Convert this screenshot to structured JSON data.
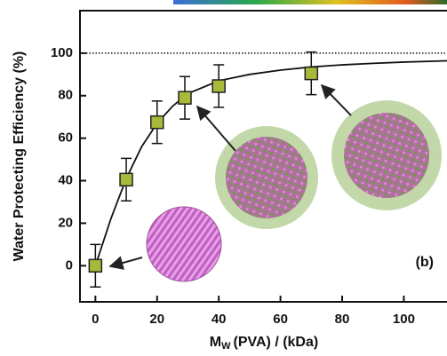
{
  "chart_data": {
    "type": "scatter",
    "x": [
      0,
      10,
      20,
      29,
      40,
      70
    ],
    "values": [
      0,
      40.5,
      67.5,
      79,
      84.5,
      90.5
    ],
    "errors": [
      10,
      10,
      10,
      10,
      10,
      10
    ],
    "color": "#a9b93a",
    "fit_x": [
      0,
      5,
      10,
      15,
      20,
      25,
      30,
      40,
      50,
      60,
      70,
      80,
      90,
      100,
      114
    ],
    "fit_values": [
      0,
      22,
      41,
      56,
      67,
      75,
      81,
      87,
      90,
      92,
      93.5,
      94.5,
      95.2,
      95.8,
      96.4
    ],
    "reference_line": 100,
    "xlim": [
      -5,
      114
    ],
    "ylim": [
      -17,
      120
    ],
    "xticks": [
      0,
      20,
      40,
      60,
      80,
      100
    ],
    "yticks": [
      0,
      20,
      40,
      60,
      80,
      100
    ],
    "y_label": "Water Protecting Efficiency (%)",
    "x_label": {
      "main": "M",
      "sub": "W",
      "rest": "(PVA) / (kDa)"
    },
    "annotation": "(b)"
  }
}
